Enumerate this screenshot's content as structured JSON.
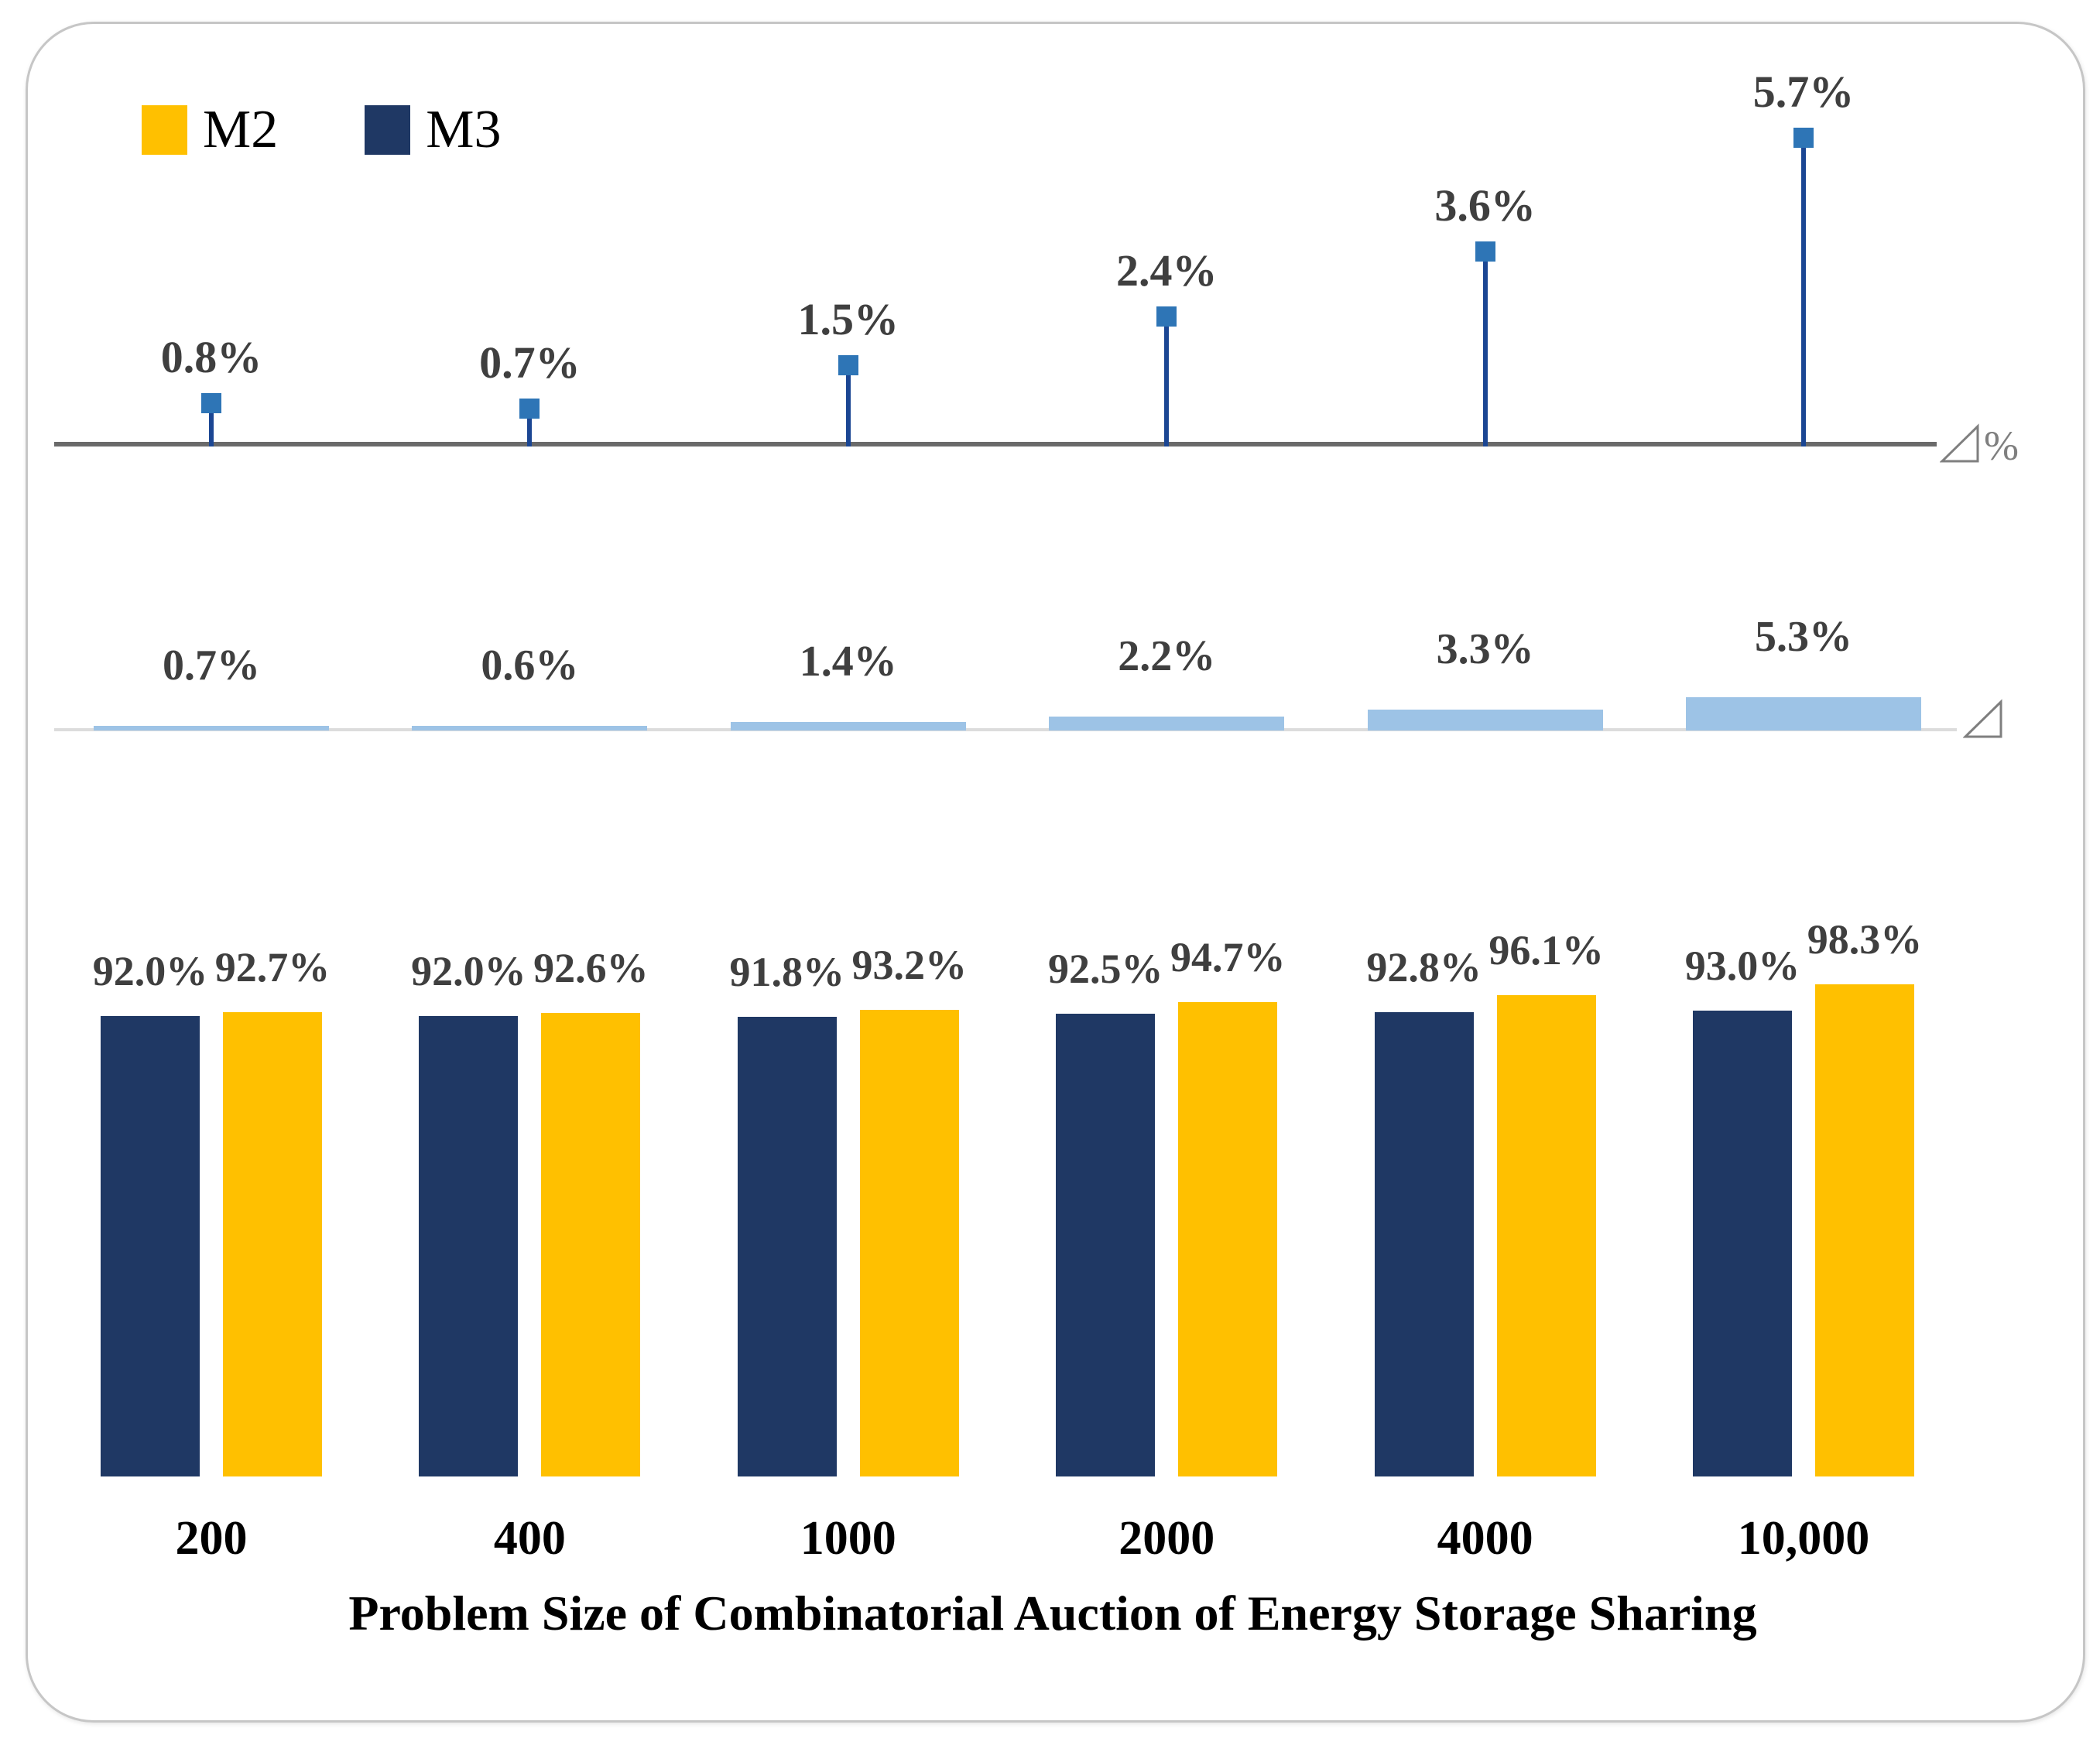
{
  "legend": {
    "items": [
      {
        "label": "M2",
        "color": "#FFC000"
      },
      {
        "label": "M3",
        "color": "#1F3864"
      }
    ]
  },
  "chart_data": [
    {
      "id": "top-stem-panel",
      "type": "stem",
      "categories": [
        "200",
        "400",
        "1000",
        "2000",
        "4000",
        "10,000"
      ],
      "values": [
        0.8,
        0.7,
        1.5,
        2.4,
        3.6,
        5.7
      ],
      "labels": [
        "0.8%",
        "0.7%",
        "1.5%",
        "2.4%",
        "3.6%",
        "5.7%"
      ],
      "axis_suffix": "%",
      "marker": "square",
      "stem_color": "#1B4693",
      "marker_color": "#2E75B6",
      "axis_color": "#6A6A6A",
      "label_color": "#3F3F3F",
      "ylim": [
        0,
        6
      ],
      "grid": false
    },
    {
      "id": "middle-delta-bar-panel",
      "type": "bar",
      "categories": [
        "200",
        "400",
        "1000",
        "2000",
        "4000",
        "10,000"
      ],
      "values": [
        0.7,
        0.6,
        1.4,
        2.2,
        3.3,
        5.3
      ],
      "labels": [
        "0.7%",
        "0.6%",
        "1.4%",
        "2.2%",
        "3.3%",
        "5.3%"
      ],
      "axis_suffix": "",
      "bar_color": "#9DC3E6",
      "axis_color": "#DCDCDC",
      "label_color": "#3F3F3F",
      "ylim": [
        0,
        6
      ],
      "grid": false
    },
    {
      "id": "bottom-grouped-bar-panel",
      "type": "bar",
      "categories": [
        "200",
        "400",
        "1000",
        "2000",
        "4000",
        "10,000"
      ],
      "series": [
        {
          "name": "M3",
          "color": "#1F3864",
          "values": [
            92.0,
            92.0,
            91.8,
            92.5,
            92.8,
            93.0
          ],
          "labels": [
            "92.0%",
            "92.0%",
            "91.8%",
            "92.5%",
            "92.8%",
            "93.0%"
          ]
        },
        {
          "name": "M2",
          "color": "#FFC000",
          "values": [
            92.7,
            92.6,
            93.2,
            94.7,
            96.1,
            98.3
          ],
          "labels": [
            "92.7%",
            "92.6%",
            "93.2%",
            "94.7%",
            "96.1%",
            "98.3%"
          ]
        }
      ],
      "xlabel": "Problem Size of Combinatorial Auction of Energy Storage Sharing",
      "label_color": "#3F3F3F",
      "ylim": [
        0,
        100
      ],
      "legend_position": "top-left",
      "grid": false
    }
  ],
  "symbols": {
    "triangle_delta": "⊿"
  }
}
